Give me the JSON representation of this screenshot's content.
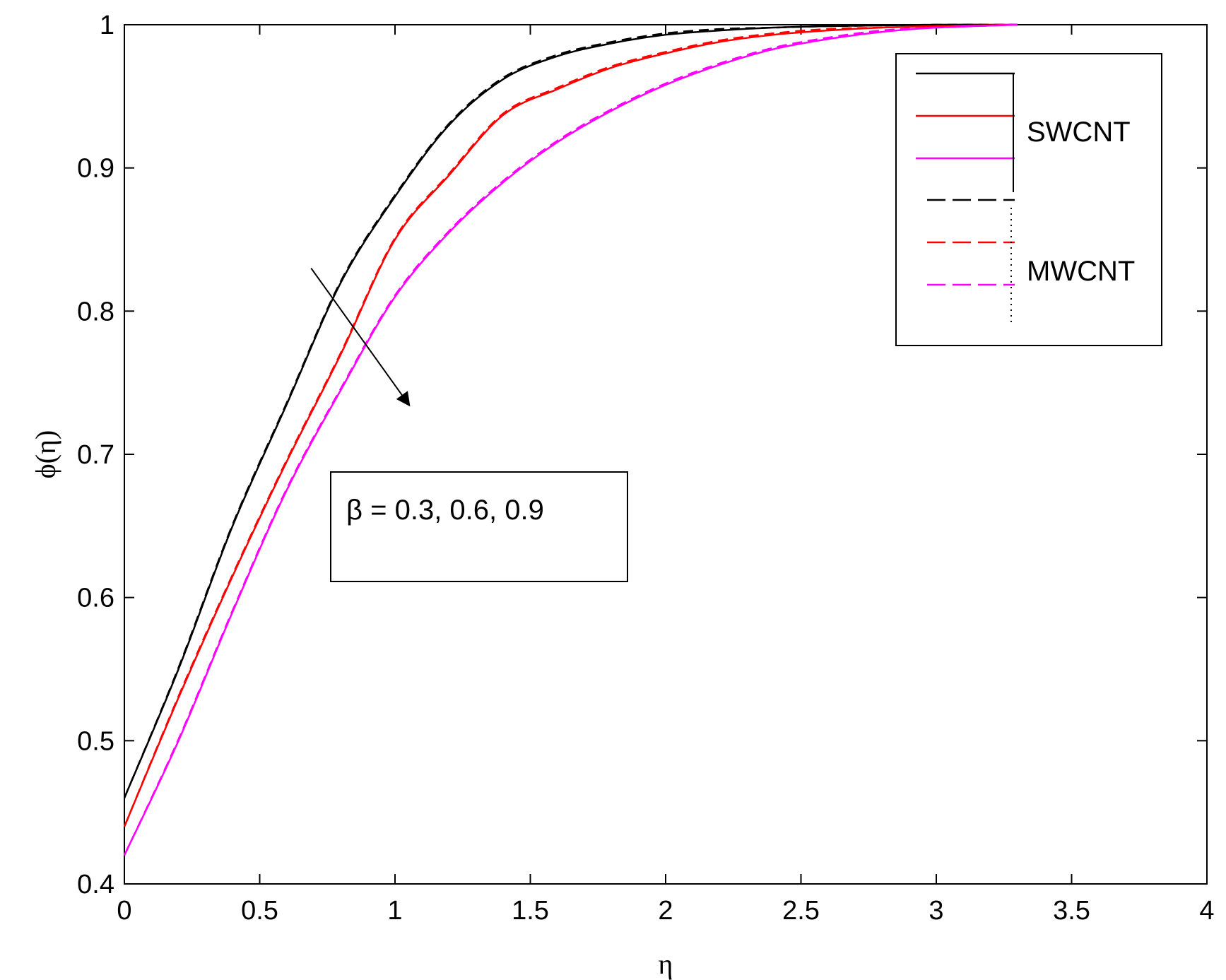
{
  "chart_data": {
    "type": "line",
    "title": "",
    "xlabel": "η",
    "ylabel": "ϕ(η)",
    "xlim": [
      0,
      4
    ],
    "ylim": [
      0.4,
      1
    ],
    "xticks": [
      "0",
      "0.5",
      "1",
      "1.5",
      "2",
      "2.5",
      "3",
      "3.5",
      "4"
    ],
    "yticks": [
      "0.4",
      "0.5",
      "0.6",
      "0.7",
      "0.8",
      "0.9",
      "1"
    ],
    "grid": false,
    "legend": {
      "placement": "top-right",
      "groups": [
        {
          "label": "SWCNT",
          "style": "solid",
          "colors": [
            "#000000",
            "#ff0000",
            "#ff00ff"
          ]
        },
        {
          "label": "MWCNT",
          "style": "dashed",
          "colors": [
            "#000000",
            "#ff0000",
            "#ff00ff"
          ]
        }
      ]
    },
    "annotation": {
      "text": "β = 0.3, 0.6, 0.9",
      "arrow_from": [
        0.69,
        0.83
      ],
      "arrow_to": [
        1.05,
        0.735
      ]
    },
    "series": [
      {
        "color": "#000000",
        "style": "solid",
        "x": [
          0,
          0.2,
          0.4,
          0.6,
          0.8,
          1.0,
          1.2,
          1.4,
          1.6,
          1.8,
          2.0,
          2.2,
          2.4,
          2.6,
          2.8,
          3.0,
          3.3
        ],
        "y": [
          0.46,
          0.55,
          0.65,
          0.735,
          0.82,
          0.88,
          0.93,
          0.962,
          0.978,
          0.987,
          0.993,
          0.996,
          0.998,
          0.999,
          0.9995,
          1.0,
          1.0
        ]
      },
      {
        "color": "#000000",
        "style": "dashed",
        "x": [
          0,
          0.2,
          0.4,
          0.6,
          0.8,
          1.0,
          1.2,
          1.4,
          1.6,
          1.8,
          2.0,
          2.2,
          2.4,
          2.6,
          2.8,
          3.0,
          3.3
        ],
        "y": [
          0.46,
          0.551,
          0.651,
          0.736,
          0.821,
          0.881,
          0.931,
          0.963,
          0.979,
          0.988,
          0.994,
          0.997,
          0.998,
          0.999,
          0.9995,
          1.0,
          1.0
        ]
      },
      {
        "color": "#ff0000",
        "style": "solid",
        "x": [
          0,
          0.2,
          0.4,
          0.6,
          0.8,
          1.0,
          1.2,
          1.4,
          1.6,
          1.8,
          2.0,
          2.2,
          2.4,
          2.6,
          2.8,
          3.0,
          3.3
        ],
        "y": [
          0.44,
          0.53,
          0.615,
          0.695,
          0.77,
          0.85,
          0.895,
          0.937,
          0.955,
          0.97,
          0.98,
          0.988,
          0.993,
          0.996,
          0.998,
          0.999,
          1.0
        ]
      },
      {
        "color": "#ff0000",
        "style": "dashed",
        "x": [
          0,
          0.2,
          0.4,
          0.6,
          0.8,
          1.0,
          1.2,
          1.4,
          1.6,
          1.8,
          2.0,
          2.2,
          2.4,
          2.6,
          2.8,
          3.0,
          3.3
        ],
        "y": [
          0.44,
          0.531,
          0.616,
          0.696,
          0.771,
          0.851,
          0.896,
          0.938,
          0.956,
          0.971,
          0.981,
          0.989,
          0.994,
          0.997,
          0.998,
          0.999,
          1.0
        ]
      },
      {
        "color": "#ff00ff",
        "style": "solid",
        "x": [
          0,
          0.2,
          0.4,
          0.6,
          0.8,
          1.0,
          1.2,
          1.4,
          1.6,
          1.8,
          2.0,
          2.2,
          2.4,
          2.6,
          2.8,
          3.0,
          3.3
        ],
        "y": [
          0.42,
          0.5,
          0.59,
          0.675,
          0.745,
          0.81,
          0.855,
          0.89,
          0.918,
          0.94,
          0.958,
          0.972,
          0.983,
          0.99,
          0.995,
          0.998,
          1.0
        ]
      },
      {
        "color": "#ff00ff",
        "style": "dashed",
        "x": [
          0,
          0.2,
          0.4,
          0.6,
          0.8,
          1.0,
          1.2,
          1.4,
          1.6,
          1.8,
          2.0,
          2.2,
          2.4,
          2.6,
          2.8,
          3.0,
          3.3
        ],
        "y": [
          0.42,
          0.501,
          0.591,
          0.676,
          0.746,
          0.811,
          0.856,
          0.891,
          0.919,
          0.941,
          0.959,
          0.973,
          0.984,
          0.991,
          0.996,
          0.998,
          1.0
        ]
      }
    ]
  }
}
